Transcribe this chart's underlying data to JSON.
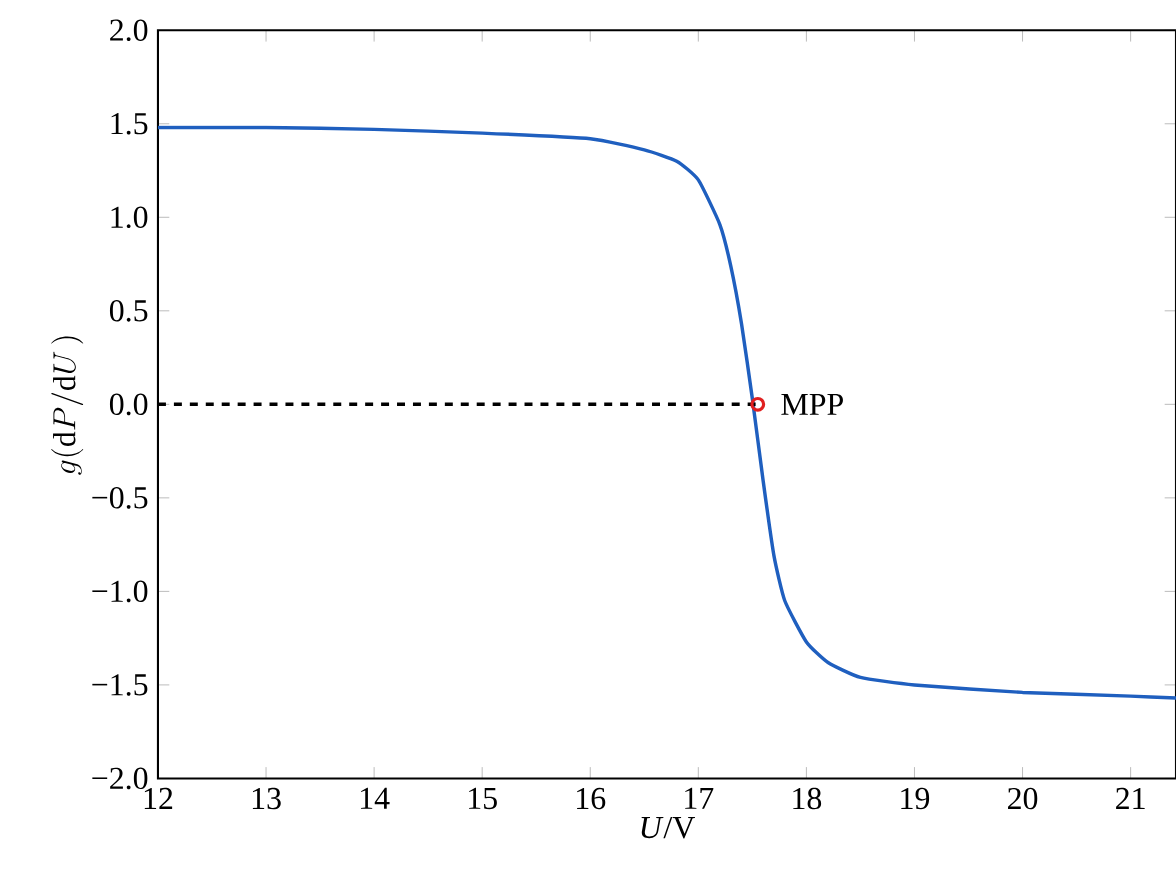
{
  "chart_data": {
    "type": "line",
    "xlabel": "*U*/V",
    "ylabel": "g(\\mathrm{d}P/\\mathrm{d}U\\,)",
    "xlim": [
      12,
      21.42
    ],
    "ylim": [
      -2,
      2
    ],
    "xticks": [
      12,
      13,
      14,
      15,
      16,
      17,
      18,
      19,
      20,
      21
    ],
    "yticks": [
      {
        "value": -2,
        "label": "−2.0"
      },
      {
        "value": -1.5,
        "label": "−1.5"
      },
      {
        "value": -1,
        "label": "−1.0"
      },
      {
        "value": -0.5,
        "label": "−0.5"
      },
      {
        "value": 0,
        "label": "0.0"
      },
      {
        "value": 0.5,
        "label": "0.5"
      },
      {
        "value": 1,
        "label": "1.0"
      },
      {
        "value": 1.5,
        "label": "1.5"
      },
      {
        "value": 2,
        "label": "2.0"
      }
    ],
    "grid": false,
    "series": [
      {
        "type": "line",
        "color": "#1f5fbf",
        "line_style": "solid",
        "marker": "none",
        "x": [
          12,
          13,
          14,
          15,
          16,
          16.5,
          16.8,
          17,
          17.2,
          17.3,
          17.4,
          17.5,
          17.6,
          17.7,
          17.8,
          18,
          18.2,
          18.5,
          19,
          20,
          21,
          21.42
        ],
        "values": [
          1.48,
          1.48,
          1.47,
          1.45,
          1.42,
          1.36,
          1.3,
          1.2,
          0.96,
          0.74,
          0.43,
          0.03,
          -0.41,
          -0.81,
          -1.05,
          -1.27,
          -1.38,
          -1.46,
          -1.5,
          -1.54,
          -1.56,
          -1.57
        ]
      },
      {
        "type": "line",
        "color": "#000000",
        "line_style": "dashed",
        "marker": "none",
        "x": [
          12,
          17.55
        ],
        "values": [
          0,
          0
        ]
      },
      {
        "type": "scatter",
        "color": "#e02020",
        "marker": "circle",
        "x": [
          17.55
        ],
        "values": [
          0
        ]
      }
    ],
    "annotations": [
      {
        "text": "MPP",
        "x": 17.55,
        "y": 0
      }
    ]
  }
}
